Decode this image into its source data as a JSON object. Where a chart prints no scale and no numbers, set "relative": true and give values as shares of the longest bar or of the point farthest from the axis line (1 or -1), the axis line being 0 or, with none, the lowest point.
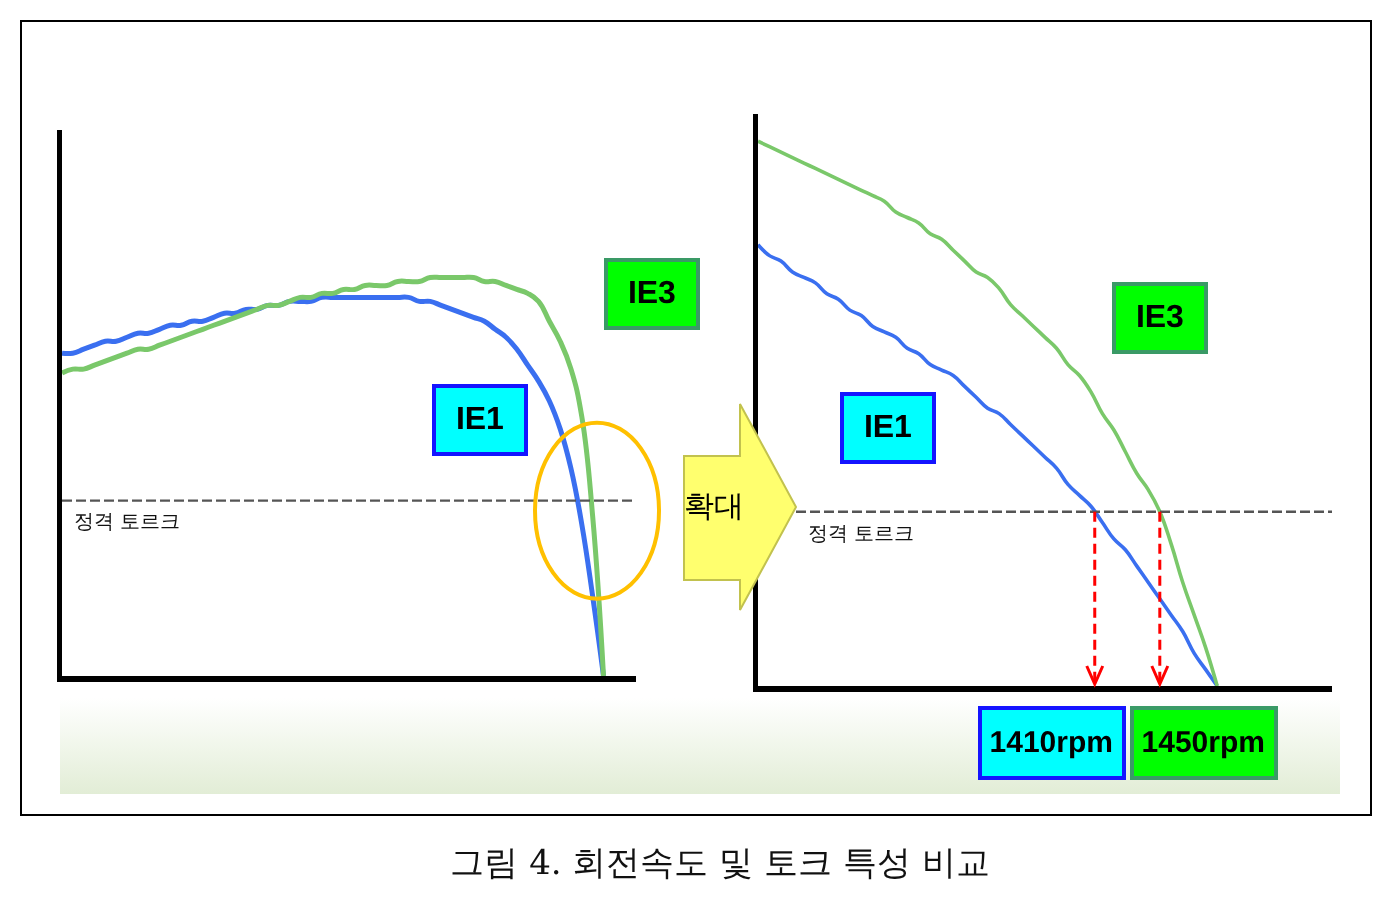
{
  "chart_data": [
    {
      "type": "line",
      "relative": true,
      "categories": [
        null,
        null,
        null,
        null,
        null,
        null,
        null,
        null,
        null,
        null,
        null,
        null,
        null,
        null,
        null,
        null,
        null,
        null,
        null,
        null,
        null,
        null,
        null,
        null,
        null,
        null,
        null,
        null,
        null,
        null,
        null,
        null,
        null,
        null,
        null,
        null,
        null,
        null,
        null,
        null,
        null,
        null,
        null,
        null,
        null,
        null,
        null,
        null,
        null,
        null,
        null,
        null,
        null,
        null
      ],
      "series": [
        {
          "name": "IE1",
          "color": "#3a6ff0",
          "values": [
            0.81,
            0.81,
            0.82,
            0.83,
            0.84,
            0.84,
            0.85,
            0.86,
            0.86,
            0.87,
            0.88,
            0.88,
            0.89,
            0.89,
            0.9,
            0.91,
            0.91,
            0.92,
            0.92,
            0.93,
            0.93,
            0.94,
            0.94,
            0.94,
            0.95,
            0.95,
            0.95,
            0.95,
            0.95,
            0.95,
            0.95,
            0.95,
            0.95,
            0.94,
            0.94,
            0.93,
            0.92,
            0.91,
            0.9,
            0.89,
            0.87,
            0.85,
            0.82,
            0.78,
            0.74,
            0.69,
            0.62,
            0.52,
            0.38,
            0.2,
            0,
            null,
            null,
            null
          ]
        },
        {
          "name": "IE3",
          "color": "#7ac86a",
          "values": [
            0.76,
            0.77,
            0.77,
            0.78,
            0.79,
            0.8,
            0.81,
            0.82,
            0.82,
            0.83,
            0.84,
            0.85,
            0.86,
            0.87,
            0.88,
            0.89,
            0.9,
            0.91,
            0.92,
            0.93,
            0.93,
            0.94,
            0.95,
            0.95,
            0.96,
            0.96,
            0.97,
            0.97,
            0.98,
            0.98,
            0.98,
            0.99,
            0.99,
            0.99,
            1,
            1,
            1,
            1,
            1,
            0.99,
            0.99,
            0.98,
            0.97,
            0.96,
            0.94,
            0.89,
            0.84,
            0.77,
            0.65,
            0.4,
            0,
            null,
            null,
            null
          ]
        }
      ],
      "ref_lines": [
        {
          "axis": "y",
          "value": 0.44,
          "label": "정격 토르크",
          "color": "#555555",
          "line_style": "dashed"
        }
      ],
      "annotations": [
        "확대",
        "그림 4. 회전속도 및 토크 특성 비교"
      ]
    },
    {
      "type": "line",
      "relative": true,
      "categories": [
        null,
        null,
        null,
        null,
        null,
        null,
        null,
        null,
        null,
        null,
        null,
        null,
        null,
        null,
        null,
        null,
        null,
        null,
        null,
        null,
        null,
        null,
        null,
        null,
        null,
        null,
        null,
        null,
        null,
        null,
        null,
        null,
        null,
        null,
        null,
        null,
        null,
        null,
        null,
        null,
        null,
        null,
        null,
        null,
        null,
        null,
        null,
        null,
        null,
        null,
        null
      ],
      "series": [
        {
          "name": "IE1",
          "color": "#3a6ff0",
          "values": [
            0.81,
            0.79,
            0.78,
            0.76,
            0.75,
            0.74,
            0.72,
            0.71,
            0.69,
            0.68,
            0.66,
            0.65,
            0.64,
            0.62,
            0.61,
            0.59,
            0.58,
            0.57,
            0.55,
            0.53,
            0.51,
            0.5,
            0.48,
            0.46,
            0.44,
            0.42,
            0.4,
            0.37,
            0.35,
            0.33,
            0.3,
            0.27,
            0.25,
            0.22,
            0.19,
            0.16,
            0.13,
            0.1,
            0.06,
            0.03,
            0,
            null,
            null,
            null,
            null,
            null,
            null,
            null,
            null,
            null,
            null
          ]
        },
        {
          "name": "IE3",
          "color": "#7ac86a",
          "values": [
            1,
            0.99,
            0.98,
            0.97,
            0.96,
            0.95,
            0.94,
            0.93,
            0.92,
            0.91,
            0.9,
            0.89,
            0.87,
            0.86,
            0.85,
            0.83,
            0.82,
            0.8,
            0.78,
            0.76,
            0.75,
            0.73,
            0.7,
            0.68,
            0.66,
            0.64,
            0.62,
            0.59,
            0.57,
            0.54,
            0.5,
            0.47,
            0.43,
            0.39,
            0.36,
            0.32,
            0.26,
            0.19,
            0.13,
            0.07,
            0,
            null,
            null,
            null,
            null,
            null,
            null,
            null,
            null,
            null,
            null
          ]
        }
      ],
      "ref_lines": [
        {
          "axis": "y",
          "value": 0.32,
          "label": "정격 토르크",
          "color": "#555555",
          "line_style": "dashed"
        }
      ],
      "annotations": [
        "1410rpm",
        "1450rpm"
      ]
    }
  ]
}
